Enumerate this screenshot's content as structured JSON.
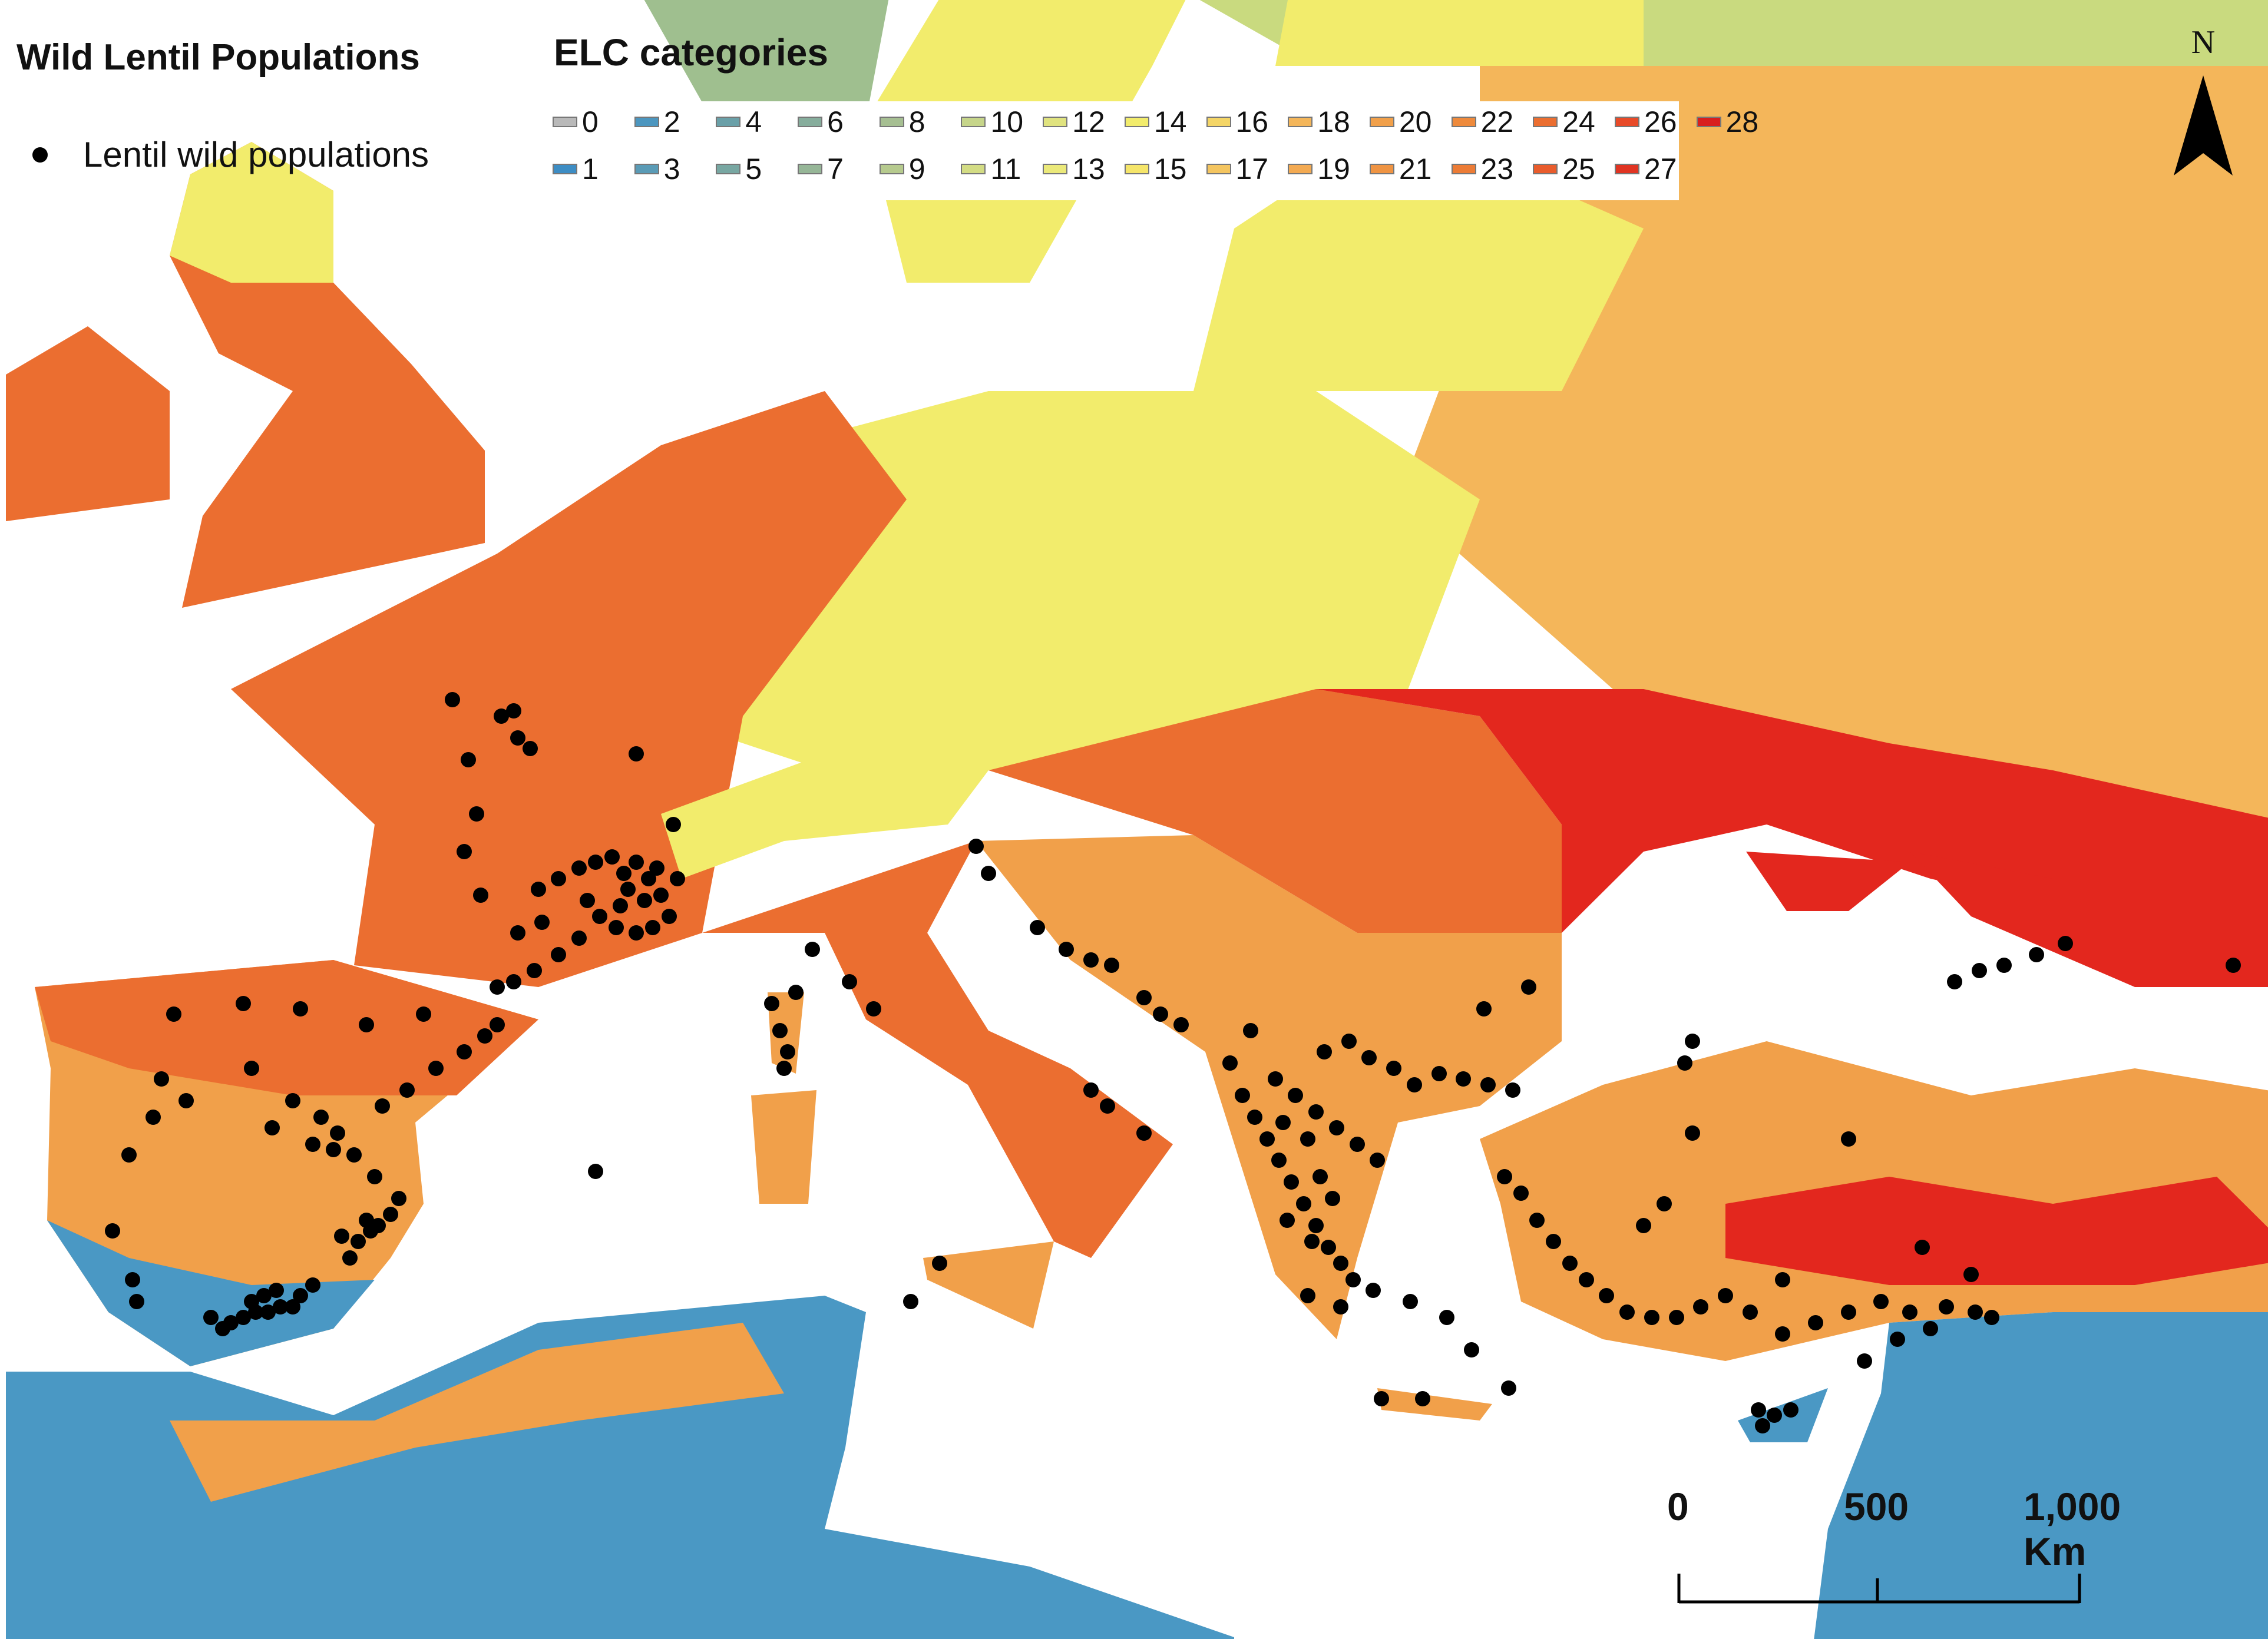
{
  "legend_points": {
    "title": "Wild Lentil Populations",
    "item_label": "Lentil wild populations"
  },
  "legend_elc": {
    "title": "ELC categories",
    "row1": [
      {
        "label": "0",
        "color": "#b9b9b9"
      },
      {
        "label": "2",
        "color": "#4c96bf"
      },
      {
        "label": "4",
        "color": "#6aa0a8"
      },
      {
        "label": "6",
        "color": "#86ad9c"
      },
      {
        "label": "8",
        "color": "#a6bf92"
      },
      {
        "label": "10",
        "color": "#c6d58a"
      },
      {
        "label": "12",
        "color": "#e0e37f"
      },
      {
        "label": "14",
        "color": "#f2ec6c"
      },
      {
        "label": "16",
        "color": "#f4d566"
      },
      {
        "label": "18",
        "color": "#f4b65a"
      },
      {
        "label": "20",
        "color": "#f1a04a"
      },
      {
        "label": "22",
        "color": "#ee8a3c"
      },
      {
        "label": "24",
        "color": "#eb6e30"
      },
      {
        "label": "26",
        "color": "#e84a28"
      },
      {
        "label": "28",
        "color": "#d81e1e"
      }
    ],
    "row2": [
      {
        "label": "1",
        "color": "#3d8dc4"
      },
      {
        "label": "3",
        "color": "#5a9bb6"
      },
      {
        "label": "5",
        "color": "#78a7a2"
      },
      {
        "label": "7",
        "color": "#96b697"
      },
      {
        "label": "9",
        "color": "#b6ca8e"
      },
      {
        "label": "11",
        "color": "#d3dc84"
      },
      {
        "label": "13",
        "color": "#ebe97a"
      },
      {
        "label": "15",
        "color": "#f5e56a"
      },
      {
        "label": "17",
        "color": "#f4c560"
      },
      {
        "label": "19",
        "color": "#f3aa52"
      },
      {
        "label": "21",
        "color": "#ef9443"
      },
      {
        "label": "23",
        "color": "#ec7c36"
      },
      {
        "label": "25",
        "color": "#e95c2c"
      },
      {
        "label": "27",
        "color": "#e03422"
      }
    ]
  },
  "north_arrow": {
    "letter": "N"
  },
  "scale_bar": {
    "labels": [
      "0",
      "500",
      "1,000 Km"
    ]
  },
  "map_colors": {
    "sea": "#ffffff",
    "tundra": "#c9da7f",
    "boreal": "#9fbf8f",
    "cool": "#f2ec6c",
    "temperate": "#f4b65a",
    "oceanic": "#eb6e30",
    "warm": "#f1a04a",
    "steppe": "#e3271e",
    "arid": "#4a98c4",
    "lake": "#c8c8c8",
    "point": "#000000"
  },
  "populations": [
    [
      -4.7,
      36.7
    ],
    [
      -4.5,
      36.8
    ],
    [
      -4.2,
      36.9
    ],
    [
      -3.9,
      37.0
    ],
    [
      -3.6,
      37.0
    ],
    [
      -3.3,
      37.1
    ],
    [
      -3.0,
      37.1
    ],
    [
      -2.8,
      37.3
    ],
    [
      -2.5,
      37.5
    ],
    [
      -5.0,
      36.9
    ],
    [
      -3.7,
      37.3
    ],
    [
      -3.4,
      37.4
    ],
    [
      -4.0,
      37.2
    ],
    [
      -6.8,
      37.2
    ],
    [
      -1.6,
      38.0
    ],
    [
      -1.4,
      38.3
    ],
    [
      -1.1,
      38.5
    ],
    [
      -0.9,
      38.6
    ],
    [
      -1.2,
      38.7
    ],
    [
      -1.8,
      38.4
    ],
    [
      -0.6,
      38.8
    ],
    [
      -0.4,
      39.1
    ],
    [
      -1.0,
      39.5
    ],
    [
      -1.5,
      39.9
    ],
    [
      -2.0,
      40.0
    ],
    [
      -2.5,
      40.1
    ],
    [
      -1.9,
      40.3
    ],
    [
      -0.8,
      40.8
    ],
    [
      -0.2,
      41.1
    ],
    [
      0.5,
      41.5
    ],
    [
      1.2,
      41.8
    ],
    [
      1.7,
      42.1
    ],
    [
      2.0,
      42.3
    ],
    [
      -3.5,
      40.4
    ],
    [
      -3.0,
      40.9
    ],
    [
      -4.0,
      41.5
    ],
    [
      -5.6,
      40.9
    ],
    [
      -6.2,
      41.3
    ],
    [
      -6.4,
      40.6
    ],
    [
      -7.0,
      39.9
    ],
    [
      -5.9,
      42.5
    ],
    [
      -4.2,
      42.7
    ],
    [
      -2.8,
      42.6
    ],
    [
      -1.2,
      42.3
    ],
    [
      0.2,
      42.5
    ],
    [
      -6.9,
      37.6
    ],
    [
      -7.4,
      38.5
    ],
    [
      -2.3,
      40.6
    ],
    [
      3.0,
      44.8
    ],
    [
      3.5,
      45.0
    ],
    [
      4.0,
      45.2
    ],
    [
      4.4,
      45.3
    ],
    [
      4.8,
      45.4
    ],
    [
      5.1,
      45.1
    ],
    [
      5.4,
      45.3
    ],
    [
      5.7,
      45.0
    ],
    [
      5.9,
      45.2
    ],
    [
      5.2,
      44.8
    ],
    [
      5.6,
      44.6
    ],
    [
      6.0,
      44.7
    ],
    [
      6.2,
      44.3
    ],
    [
      5.8,
      44.1
    ],
    [
      5.4,
      44.0
    ],
    [
      4.9,
      44.1
    ],
    [
      4.5,
      44.3
    ],
    [
      4.2,
      44.6
    ],
    [
      4.0,
      43.9
    ],
    [
      3.5,
      43.6
    ],
    [
      2.9,
      43.3
    ],
    [
      2.4,
      43.1
    ],
    [
      2.0,
      43.0
    ],
    [
      3.1,
      44.2
    ],
    [
      2.5,
      44.0
    ],
    [
      5.0,
      44.5
    ],
    [
      6.4,
      45.0
    ],
    [
      1.6,
      44.7
    ],
    [
      1.2,
      45.5
    ],
    [
      1.5,
      46.2
    ],
    [
      1.3,
      47.2
    ],
    [
      2.5,
      47.6
    ],
    [
      2.8,
      47.4
    ],
    [
      0.9,
      48.3
    ],
    [
      2.1,
      48.0
    ],
    [
      2.4,
      48.1
    ],
    [
      6.3,
      46.0
    ],
    [
      5.4,
      47.3
    ],
    [
      8.7,
      42.7
    ],
    [
      8.9,
      42.2
    ],
    [
      9.1,
      41.8
    ],
    [
      9.0,
      41.5
    ],
    [
      9.3,
      42.9
    ],
    [
      9.7,
      43.7
    ],
    [
      10.6,
      43.1
    ],
    [
      11.2,
      42.6
    ],
    [
      13.7,
      45.6
    ],
    [
      14.0,
      45.1
    ],
    [
      15.2,
      44.1
    ],
    [
      15.9,
      43.7
    ],
    [
      16.5,
      43.5
    ],
    [
      17.0,
      43.4
    ],
    [
      17.8,
      42.8
    ],
    [
      18.2,
      42.5
    ],
    [
      18.7,
      42.3
    ],
    [
      16.5,
      41.1
    ],
    [
      16.9,
      40.8
    ],
    [
      17.8,
      40.3
    ],
    [
      12.8,
      37.9
    ],
    [
      12.1,
      37.2
    ],
    [
      4.4,
      39.6
    ],
    [
      20.2,
      41.0
    ],
    [
      20.5,
      40.6
    ],
    [
      20.8,
      40.2
    ],
    [
      21.1,
      39.8
    ],
    [
      21.4,
      39.4
    ],
    [
      21.7,
      39.0
    ],
    [
      22.0,
      38.6
    ],
    [
      22.3,
      38.2
    ],
    [
      22.6,
      37.9
    ],
    [
      22.9,
      37.6
    ],
    [
      21.0,
      41.3
    ],
    [
      21.5,
      41.0
    ],
    [
      22.0,
      40.7
    ],
    [
      22.5,
      40.4
    ],
    [
      23.0,
      40.1
    ],
    [
      23.5,
      39.8
    ],
    [
      21.2,
      40.5
    ],
    [
      21.8,
      40.2
    ],
    [
      22.1,
      39.5
    ],
    [
      22.4,
      39.1
    ],
    [
      21.3,
      38.7
    ],
    [
      21.9,
      38.3
    ],
    [
      22.2,
      41.8
    ],
    [
      22.8,
      42.0
    ],
    [
      23.3,
      41.7
    ],
    [
      23.9,
      41.5
    ],
    [
      24.4,
      41.2
    ],
    [
      25.0,
      41.4
    ],
    [
      25.6,
      41.3
    ],
    [
      26.2,
      41.2
    ],
    [
      26.8,
      41.1
    ],
    [
      21.8,
      37.3
    ],
    [
      22.6,
      37.1
    ],
    [
      23.4,
      37.4
    ],
    [
      24.3,
      37.2
    ],
    [
      25.2,
      36.9
    ],
    [
      25.8,
      36.3
    ],
    [
      24.6,
      35.4
    ],
    [
      23.6,
      35.4
    ],
    [
      26.7,
      35.6
    ],
    [
      26.1,
      42.6
    ],
    [
      27.2,
      43.0
    ],
    [
      20.4,
      42.2
    ],
    [
      19.9,
      41.6
    ],
    [
      26.6,
      39.5
    ],
    [
      27.0,
      39.2
    ],
    [
      27.4,
      38.7
    ],
    [
      27.8,
      38.3
    ],
    [
      28.2,
      37.9
    ],
    [
      28.6,
      37.6
    ],
    [
      29.1,
      37.3
    ],
    [
      29.6,
      37.0
    ],
    [
      30.2,
      36.9
    ],
    [
      30.8,
      36.9
    ],
    [
      31.4,
      37.1
    ],
    [
      32.0,
      37.3
    ],
    [
      32.6,
      37.0
    ],
    [
      33.4,
      36.6
    ],
    [
      34.2,
      36.8
    ],
    [
      35.0,
      37.0
    ],
    [
      35.8,
      37.2
    ],
    [
      36.5,
      37.0
    ],
    [
      37.4,
      37.1
    ],
    [
      38.1,
      37.0
    ],
    [
      38.5,
      36.9
    ],
    [
      36.2,
      36.5
    ],
    [
      37.0,
      36.7
    ],
    [
      30.0,
      38.6
    ],
    [
      30.5,
      39.0
    ],
    [
      31.2,
      40.3
    ],
    [
      33.4,
      37.6
    ],
    [
      35.4,
      36.1
    ],
    [
      36.8,
      38.2
    ],
    [
      38.0,
      37.7
    ],
    [
      32.8,
      35.2
    ],
    [
      33.2,
      35.1
    ],
    [
      33.6,
      35.2
    ],
    [
      32.9,
      34.9
    ],
    [
      37.6,
      43.1
    ],
    [
      38.2,
      43.3
    ],
    [
      38.8,
      43.4
    ],
    [
      39.6,
      43.6
    ],
    [
      40.3,
      43.8
    ],
    [
      44.4,
      43.4
    ],
    [
      31.2,
      42.0
    ],
    [
      31.0,
      41.6
    ],
    [
      35.0,
      40.2
    ]
  ]
}
